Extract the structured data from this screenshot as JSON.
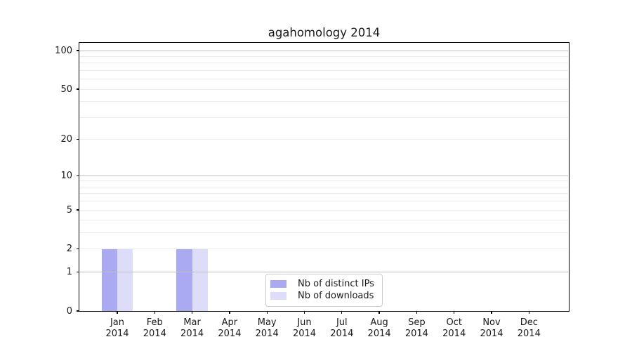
{
  "figure": {
    "background": "#ffffff"
  },
  "chart_data": {
    "type": "bar",
    "title": "agahomology 2014",
    "categories": [
      "Jan",
      "Feb",
      "Mar",
      "Apr",
      "May",
      "Jun",
      "Jul",
      "Aug",
      "Sep",
      "Oct",
      "Nov",
      "Dec"
    ],
    "category_year": "2014",
    "series": [
      {
        "name": "Nb of distinct IPs",
        "color": "#aaaaf2",
        "values": [
          2,
          0,
          2,
          0,
          0,
          0,
          0,
          0,
          0,
          0,
          0,
          0
        ]
      },
      {
        "name": "Nb of downloads",
        "color": "#ddddf9",
        "values": [
          2,
          0,
          2,
          0,
          0,
          0,
          0,
          0,
          0,
          0,
          0,
          0
        ]
      }
    ],
    "xlabel": "",
    "ylabel": "",
    "y_axis": {
      "scale": "log1p",
      "ylim": [
        0,
        115
      ],
      "ticks": [
        0,
        1,
        2,
        5,
        10,
        20,
        50,
        100
      ],
      "gridlines": [
        1,
        2,
        3,
        4,
        5,
        6,
        7,
        8,
        9,
        10,
        20,
        30,
        40,
        50,
        60,
        70,
        80,
        90,
        100
      ],
      "decade_gridlines": [
        1,
        10,
        100
      ],
      "grid": true
    },
    "legend": {
      "position": "lower center"
    },
    "colors": {
      "spine": "#000000",
      "text": "#1a1a1a",
      "grid_decade": "#bdbdbd",
      "grid_minor": "#ececec",
      "legend_border": "#cccccc"
    }
  }
}
